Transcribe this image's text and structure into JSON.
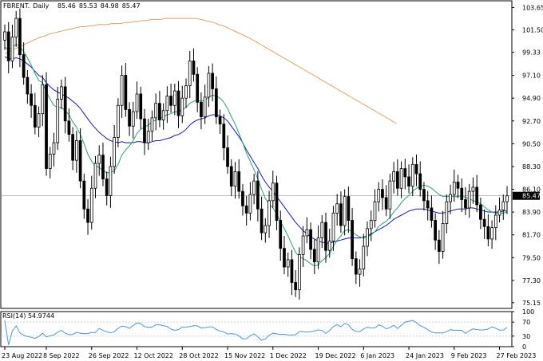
{
  "chart_data": {
    "type": "candlestick",
    "symbol": "FBRENT.",
    "timeframe": "Daily",
    "header_ohlc": [
      "85.46",
      "85.53",
      "84.98",
      "85.47"
    ],
    "last_price": "85.47",
    "price_ticks": [
      "103.65",
      "101.50",
      "99.33",
      "97.10",
      "94.90",
      "92.70",
      "90.50",
      "88.30",
      "86.10",
      "83.90",
      "81.70",
      "79.50",
      "77.30",
      "75.15"
    ],
    "ylim": [
      74.6,
      104.3
    ],
    "date_ticks": [
      {
        "label": "23 Aug 2022",
        "index": 0
      },
      {
        "label": "8 Sep 2022",
        "index": 11
      },
      {
        "label": "26 Sep 2022",
        "index": 23
      },
      {
        "label": "12 Oct 2022",
        "index": 35
      },
      {
        "label": "28 Oct 2022",
        "index": 47
      },
      {
        "label": "15 Nov 2022",
        "index": 59
      },
      {
        "label": "1 Dec 2022",
        "index": 71
      },
      {
        "label": "19 Dec 2022",
        "index": 83
      },
      {
        "label": "6 Jan 2023",
        "index": 95
      },
      {
        "label": "24 Jan 2023",
        "index": 107
      },
      {
        "label": "9 Feb 2023",
        "index": 119
      },
      {
        "label": "27 Feb 2023",
        "index": 131
      }
    ],
    "close": [
      101.3,
      98.5,
      100.8,
      102.6,
      99.1,
      96.9,
      95.3,
      94.2,
      92.1,
      93.4,
      96.2,
      88.1,
      89.5,
      90.6,
      94.8,
      96.0,
      92.7,
      91.4,
      88.9,
      90.8,
      86.9,
      84.2,
      82.9,
      86.2,
      88.6,
      89.4,
      87.1,
      85.5,
      88.3,
      91.1,
      94.2,
      97.1,
      93.8,
      92.2,
      93.6,
      95.3,
      92.9,
      90.6,
      91.7,
      93.0,
      94.4,
      92.8,
      93.7,
      95.1,
      94.2,
      95.6,
      93.2,
      94.9,
      96.1,
      98.5,
      97.2,
      94.5,
      93.1,
      95.0,
      97.3,
      95.8,
      93.1,
      92.4,
      90.1,
      88.3,
      86.4,
      87.8,
      85.9,
      84.5,
      83.8,
      85.6,
      86.9,
      84.2,
      81.9,
      82.6,
      85.0,
      86.7,
      83.1,
      80.4,
      78.6,
      79.3,
      77.1,
      76.4,
      79.8,
      81.6,
      82.2,
      80.3,
      79.1,
      81.4,
      82.9,
      80.2,
      81.1,
      83.8,
      84.7,
      82.6,
      85.4,
      83.1,
      79.4,
      77.9,
      78.4,
      80.6,
      82.3,
      83.1,
      84.9,
      86.1,
      85.3,
      84.2,
      86.9,
      87.8,
      86.2,
      88.1,
      87.3,
      86.4,
      88.5,
      87.6,
      86.1,
      85.0,
      84.3,
      83.1,
      81.2,
      80.1,
      82.8,
      84.9,
      85.6,
      86.8,
      86.2,
      85.1,
      84.3,
      85.9,
      86.3,
      84.6,
      83.2,
      82.5,
      81.3,
      82.4,
      83.6,
      84.1,
      84.9,
      85.47
    ],
    "ma_fast": [
      99.8,
      99.6,
      99.8,
      100.1,
      99.9,
      99.4,
      98.8,
      98.1,
      97.3,
      96.6,
      96.4,
      95.5,
      94.8,
      94.2,
      94.0,
      94.0,
      93.7,
      93.3,
      92.6,
      92.1,
      91.4,
      90.5,
      89.5,
      88.8,
      88.4,
      88.2,
      87.9,
      87.7,
      87.7,
      87.9,
      88.5,
      89.4,
      89.9,
      90.3,
      90.8,
      91.5,
      91.9,
      92.1,
      92.3,
      92.6,
      92.8,
      92.9,
      93.1,
      93.3,
      93.4,
      93.6,
      93.6,
      93.8,
      94.0,
      94.4,
      94.6,
      94.7,
      94.6,
      94.7,
      95.0,
      95.2,
      95.1,
      94.9,
      94.5,
      93.9,
      93.1,
      92.4,
      91.5,
      90.6,
      89.6,
      88.8,
      88.0,
      87.1,
      86.1,
      85.2,
      84.7,
      84.3,
      83.7,
      83.0,
      82.3,
      81.6,
      80.8,
      80.0,
      79.6,
      79.4,
      79.2,
      78.9,
      78.7,
      78.8,
      79.2,
      79.5,
      79.9,
      80.6,
      81.2,
      81.6,
      82.1,
      82.2,
      82.0,
      81.7,
      81.5,
      81.4,
      81.5,
      81.7,
      82.0,
      82.5,
      82.8,
      83.0,
      83.4,
      83.9,
      84.3,
      84.8,
      85.2,
      85.5,
      85.9,
      86.2,
      86.4,
      86.5,
      86.4,
      86.2,
      85.9,
      85.6,
      85.4,
      85.4,
      85.4,
      85.4,
      85.4,
      85.5,
      85.3,
      85.2,
      85.0,
      84.9,
      84.7,
      84.4,
      84.1,
      83.9,
      83.8,
      83.8,
      83.8,
      83.9
    ],
    "ma_slow": [
      98.9,
      98.7,
      98.7,
      98.8,
      98.7,
      98.5,
      98.2,
      97.9,
      97.5,
      97.1,
      96.9,
      96.4,
      96.0,
      95.7,
      95.5,
      95.3,
      95.1,
      94.9,
      94.6,
      94.3,
      93.9,
      93.4,
      92.9,
      92.4,
      92.0,
      91.6,
      91.3,
      91.0,
      90.8,
      90.7,
      90.6,
      90.7,
      90.6,
      90.6,
      90.6,
      90.7,
      90.7,
      90.6,
      90.6,
      90.7,
      90.8,
      90.8,
      90.9,
      91.0,
      91.1,
      91.3,
      91.4,
      91.6,
      91.9,
      92.3,
      92.6,
      92.8,
      92.9,
      93.0,
      93.2,
      93.3,
      93.3,
      93.2,
      93.0,
      92.7,
      92.2,
      91.7,
      91.2,
      90.6,
      89.9,
      89.3,
      88.7,
      88.1,
      87.4,
      86.8,
      86.3,
      85.9,
      85.4,
      84.9,
      84.4,
      83.9,
      83.4,
      82.9,
      82.5,
      82.1,
      81.8,
      81.5,
      81.3,
      81.1,
      81.0,
      80.9,
      80.9,
      81.0,
      81.1,
      81.2,
      81.3,
      81.4,
      81.4,
      81.4,
      81.4,
      81.5,
      81.6,
      81.8,
      82.0,
      82.2,
      82.4,
      82.6,
      82.9,
      83.2,
      83.4,
      83.6,
      83.8,
      84.0,
      84.1,
      84.2,
      84.2,
      84.2,
      84.1,
      84.0,
      83.9,
      83.8,
      83.8,
      83.9,
      84.0,
      84.1,
      84.2,
      84.2,
      84.2,
      84.3,
      84.3,
      84.2,
      84.1,
      84.0,
      83.9,
      83.9,
      83.9,
      83.9,
      84.0,
      84.0
    ],
    "ma_long": [
      99.2,
      99.4,
      99.6,
      99.8,
      100.0,
      100.2,
      100.4,
      100.6,
      100.8,
      100.9,
      101.1,
      101.2,
      101.3,
      101.4,
      101.5,
      101.6,
      101.7,
      101.8,
      101.8,
      101.9,
      101.9,
      102.0,
      102.0,
      102.0,
      102.1,
      102.1,
      102.1,
      102.2,
      102.2,
      102.3,
      102.3,
      102.4,
      102.4,
      102.5,
      102.5,
      102.5,
      102.6,
      102.6,
      102.6,
      102.6,
      102.6,
      102.6,
      102.6,
      102.6,
      102.5,
      102.4,
      102.3,
      102.2,
      102.0,
      101.9,
      101.7,
      101.5,
      101.3,
      101.1,
      100.9,
      100.7,
      100.5,
      100.3,
      100.1,
      99.9,
      99.7,
      99.5,
      99.3,
      99.1,
      98.9,
      98.7,
      98.5,
      98.3,
      98.1,
      97.9,
      97.7,
      97.5,
      97.3,
      97.1,
      96.9,
      96.7,
      96.5,
      96.3,
      96.1,
      95.9,
      95.7,
      95.5,
      95.3,
      95.1,
      94.9,
      94.7,
      94.5,
      94.3,
      94.1
    ],
    "ma_long_start_index": 0,
    "rsi_label": "RSI(14) 54.9744",
    "rsi_ticks": [
      "100",
      "70",
      "30",
      "0"
    ],
    "rsi_last": 54.9744,
    "rsi_value_range": [
      0,
      100
    ]
  },
  "colors": {
    "candle": "#000000",
    "ma_fast": "#2aa36b",
    "ma_slow": "#1a1aa6",
    "ma_long": "#e0a060",
    "rsi_line": "#4a9ad6",
    "grid_text": "#000000",
    "border": "#000000"
  }
}
